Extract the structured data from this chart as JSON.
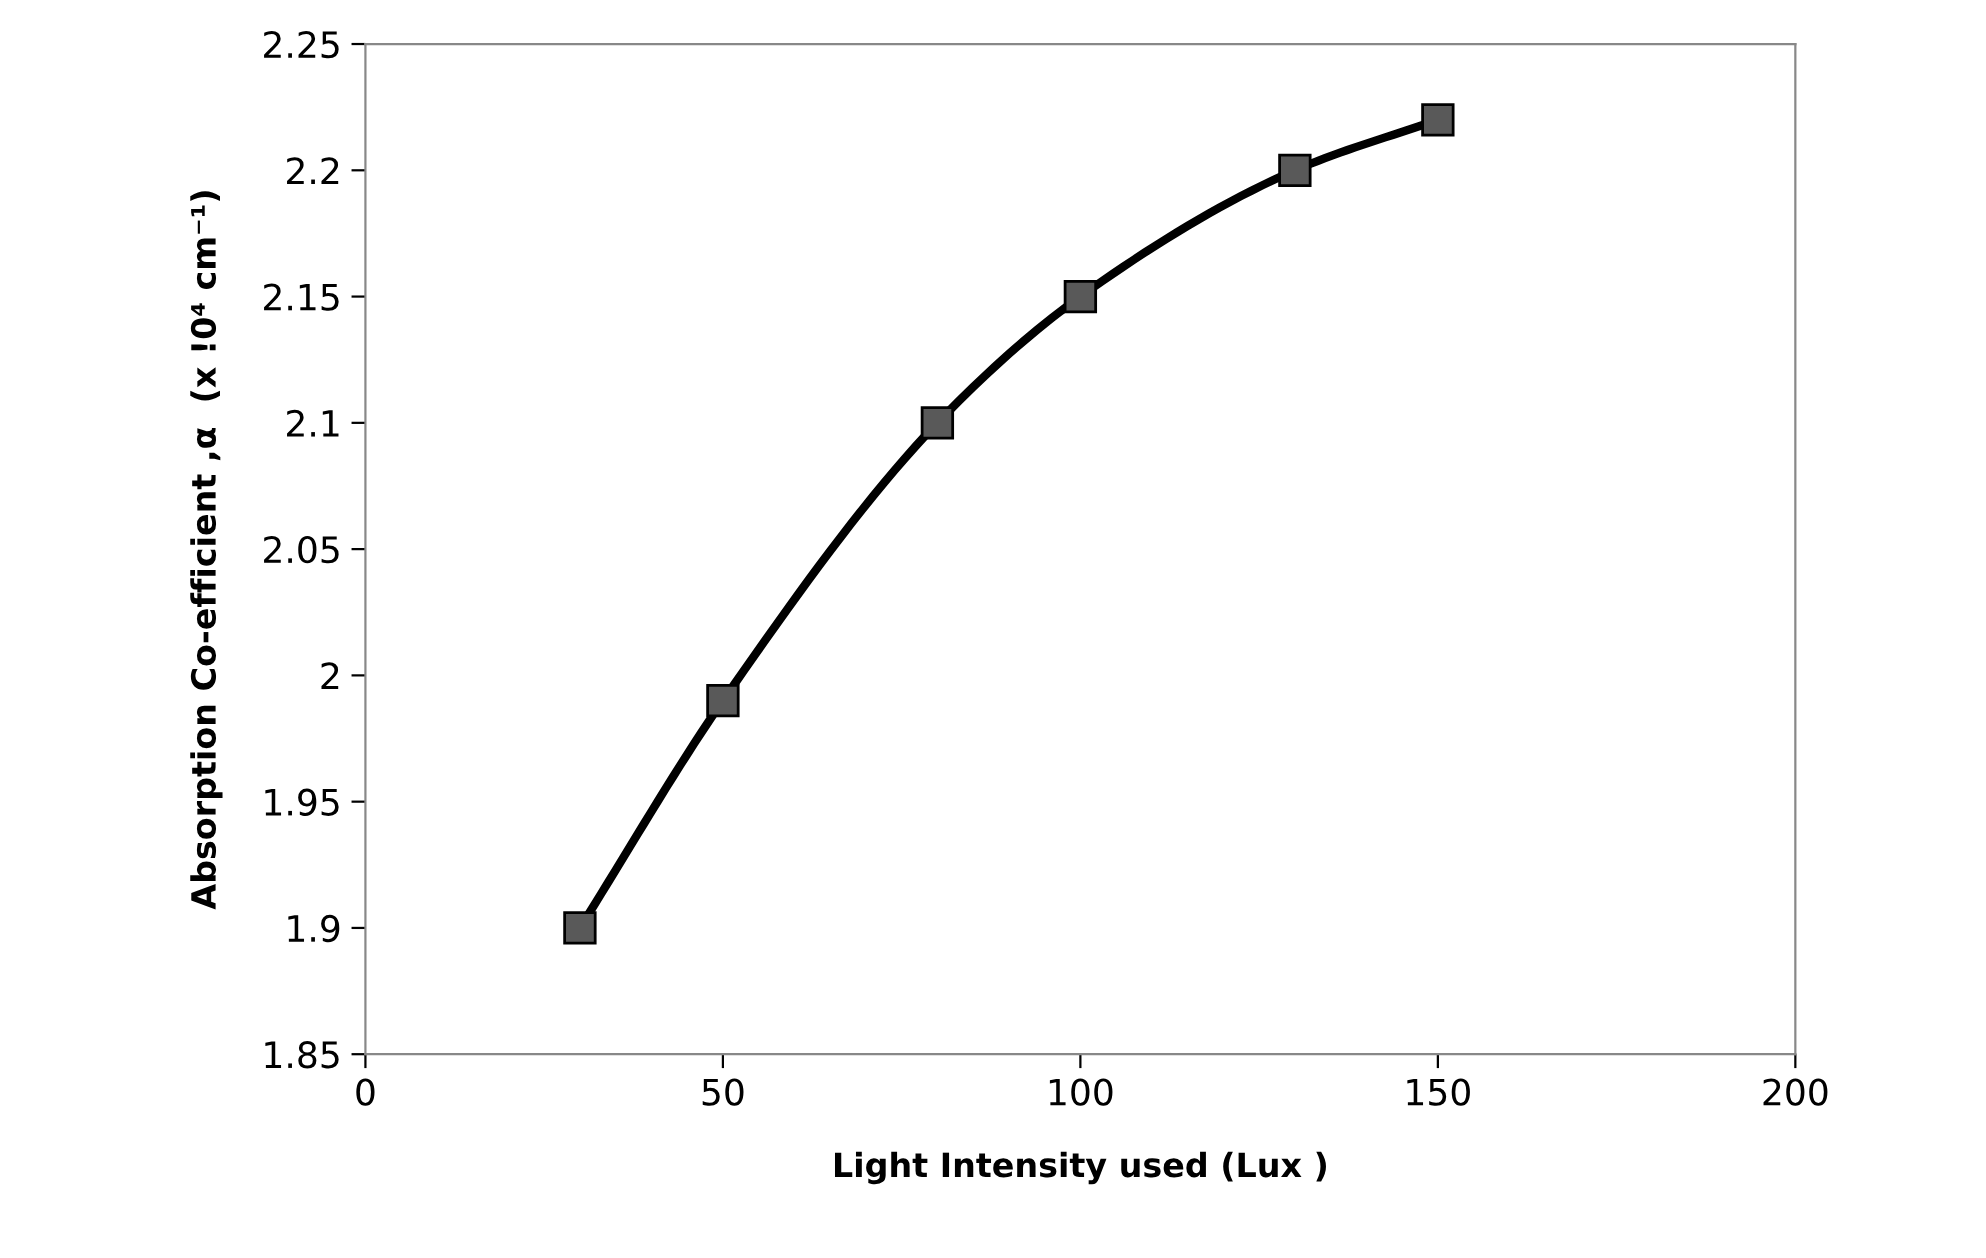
{
  "chart_data": {
    "type": "line",
    "xlabel": "Light Intensity used (Lux )",
    "ylabel": "Absorption Co-efficient ,α  (x !0⁴ cm⁻¹)",
    "x": [
      30,
      50,
      80,
      100,
      130,
      150
    ],
    "series": [
      {
        "color": "#000000",
        "values": [
          1.9,
          1.99,
          2.1,
          2.15,
          2.2,
          2.22
        ]
      }
    ],
    "marker": "square",
    "line_style": "solid",
    "grid": false,
    "legend": false,
    "xlim": [
      0,
      200
    ],
    "xticks": [
      0,
      50,
      100,
      150,
      200
    ],
    "ylim": [
      1.85,
      2.25
    ],
    "yticks": [
      1.85,
      1.9,
      1.95,
      2,
      2.05,
      2.1,
      2.15,
      2.2,
      2.25
    ]
  }
}
